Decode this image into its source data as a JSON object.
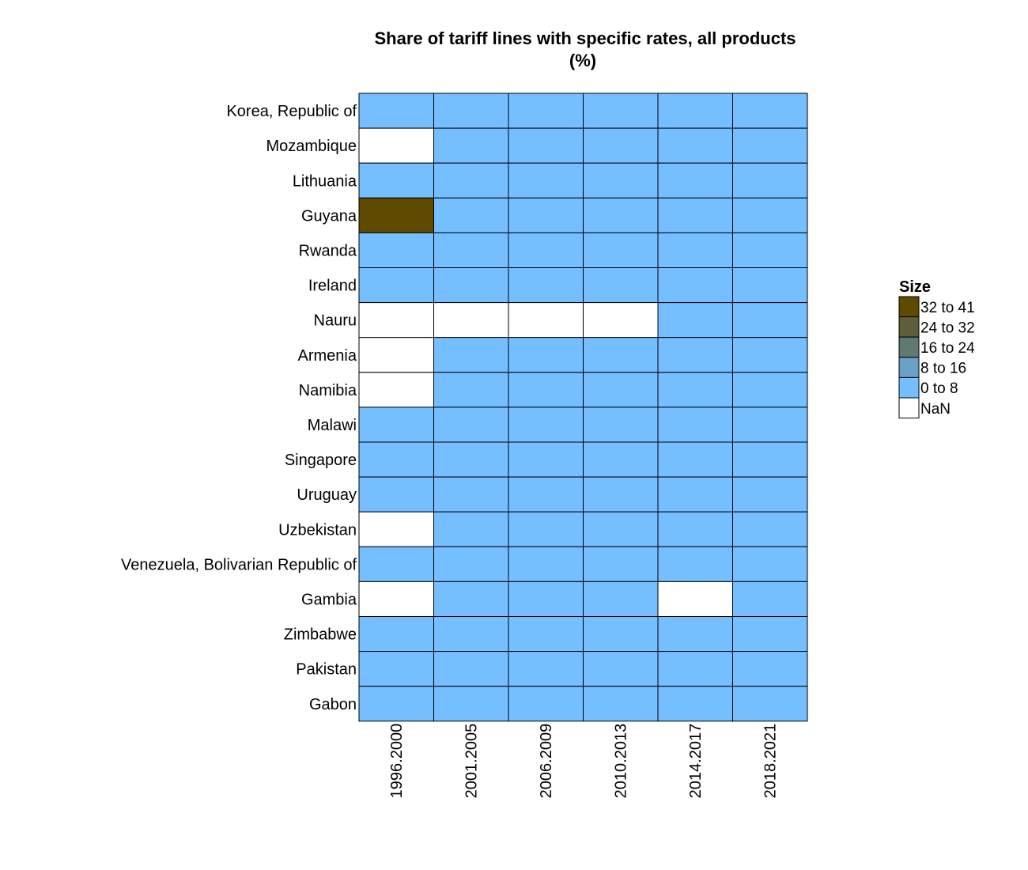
{
  "chart_data": {
    "type": "heatmap",
    "title": "Share of tariff lines with specific rates, all products",
    "subtitle": "(%)",
    "xlabel": "",
    "ylabel": "",
    "categories_x": [
      "1996.2000",
      "2001.2005",
      "2006.2009",
      "2010.2013",
      "2014.2017",
      "2018.2021"
    ],
    "categories_y": [
      "Korea, Republic of",
      "Mozambique",
      "Lithuania",
      "Guyana",
      "Rwanda",
      "Ireland",
      "Nauru",
      "Armenia",
      "Namibia",
      "Malawi",
      "Singapore",
      "Uruguay",
      "Uzbekistan",
      "Venezuela, Bolivarian Republic of",
      "Gambia",
      "Zimbabwe",
      "Pakistan",
      "Gabon"
    ],
    "cells": [
      [
        "0 to 8",
        "0 to 8",
        "0 to 8",
        "0 to 8",
        "0 to 8",
        "0 to 8"
      ],
      [
        "NaN",
        "0 to 8",
        "0 to 8",
        "0 to 8",
        "0 to 8",
        "0 to 8"
      ],
      [
        "0 to 8",
        "0 to 8",
        "0 to 8",
        "0 to 8",
        "0 to 8",
        "0 to 8"
      ],
      [
        "32 to 41",
        "0 to 8",
        "0 to 8",
        "0 to 8",
        "0 to 8",
        "0 to 8"
      ],
      [
        "0 to 8",
        "0 to 8",
        "0 to 8",
        "0 to 8",
        "0 to 8",
        "0 to 8"
      ],
      [
        "0 to 8",
        "0 to 8",
        "0 to 8",
        "0 to 8",
        "0 to 8",
        "0 to 8"
      ],
      [
        "NaN",
        "NaN",
        "NaN",
        "NaN",
        "0 to 8",
        "0 to 8"
      ],
      [
        "NaN",
        "0 to 8",
        "0 to 8",
        "0 to 8",
        "0 to 8",
        "0 to 8"
      ],
      [
        "NaN",
        "0 to 8",
        "0 to 8",
        "0 to 8",
        "0 to 8",
        "0 to 8"
      ],
      [
        "0 to 8",
        "0 to 8",
        "0 to 8",
        "0 to 8",
        "0 to 8",
        "0 to 8"
      ],
      [
        "0 to 8",
        "0 to 8",
        "0 to 8",
        "0 to 8",
        "0 to 8",
        "0 to 8"
      ],
      [
        "0 to 8",
        "0 to 8",
        "0 to 8",
        "0 to 8",
        "0 to 8",
        "0 to 8"
      ],
      [
        "NaN",
        "0 to 8",
        "0 to 8",
        "0 to 8",
        "0 to 8",
        "0 to 8"
      ],
      [
        "0 to 8",
        "0 to 8",
        "0 to 8",
        "0 to 8",
        "0 to 8",
        "0 to 8"
      ],
      [
        "NaN",
        "0 to 8",
        "0 to 8",
        "0 to 8",
        "NaN",
        "0 to 8"
      ],
      [
        "0 to 8",
        "0 to 8",
        "0 to 8",
        "0 to 8",
        "0 to 8",
        "0 to 8"
      ],
      [
        "0 to 8",
        "0 to 8",
        "0 to 8",
        "0 to 8",
        "0 to 8",
        "0 to 8"
      ],
      [
        "0 to 8",
        "0 to 8",
        "0 to 8",
        "0 to 8",
        "0 to 8",
        "0 to 8"
      ]
    ],
    "legend": {
      "title": "Size",
      "placement": "right",
      "items": [
        {
          "label": "32 to 41",
          "color": "#5e4a00"
        },
        {
          "label": "24 to 32",
          "color": "#5e5d3c"
        },
        {
          "label": "16 to 24",
          "color": "#5f7a72"
        },
        {
          "label": "8 to 16",
          "color": "#6b9fc4"
        },
        {
          "label": "0 to 8",
          "color": "#75beff"
        },
        {
          "label": "NaN",
          "color": "#ffffff"
        }
      ]
    },
    "grid": false
  }
}
